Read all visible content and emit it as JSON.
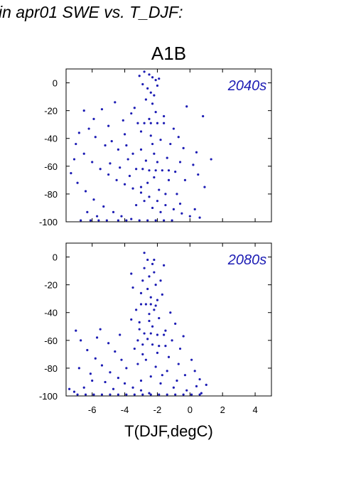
{
  "header": {
    "title": "in apr01 SWE vs. T_DJF:"
  },
  "scenario": "A1B",
  "chart_data": [
    {
      "type": "scatter",
      "annotation": "2040s",
      "xlim": [
        -7.6,
        5
      ],
      "ylim": [
        -100,
        10
      ],
      "yticks": [
        0,
        -20,
        -40,
        -60,
        -80,
        -100
      ],
      "xticks": [
        -6,
        -4,
        -2,
        0,
        2,
        4
      ],
      "color": "#1c1cb4",
      "points": [
        [
          -2.8,
          8
        ],
        [
          -2.5,
          6
        ],
        [
          -2.3,
          4
        ],
        [
          -2.1,
          2
        ],
        [
          -2.9,
          -1
        ],
        [
          -2.6,
          -4
        ],
        [
          -2.4,
          -7
        ],
        [
          -2.2,
          -9
        ],
        [
          -3.1,
          5
        ],
        [
          -1.9,
          3
        ],
        [
          -2.0,
          -2
        ],
        [
          -2.7,
          -12
        ],
        [
          -2.3,
          -15
        ],
        [
          -3.4,
          -18
        ],
        [
          -2.1,
          -21
        ],
        [
          -1.6,
          -24
        ],
        [
          -2.5,
          -26
        ],
        [
          -3.2,
          -29
        ],
        [
          -2.8,
          -29
        ],
        [
          -2.4,
          -29
        ],
        [
          -2.0,
          -29
        ],
        [
          -1.6,
          -29
        ],
        [
          -4.6,
          -14
        ],
        [
          -5.4,
          -19
        ],
        [
          -3.6,
          -22
        ],
        [
          -4.1,
          -27
        ],
        [
          -5.0,
          -31
        ],
        [
          -6.2,
          -33
        ],
        [
          -6.8,
          -36
        ],
        [
          -5.8,
          -39
        ],
        [
          -4.8,
          -42
        ],
        [
          -3.9,
          -45
        ],
        [
          -3.0,
          -48
        ],
        [
          -2.2,
          -51
        ],
        [
          -1.4,
          -54
        ],
        [
          -0.6,
          -57
        ],
        [
          0.2,
          -59
        ],
        [
          1.3,
          -55
        ],
        [
          -7.0,
          -44
        ],
        [
          -6.5,
          -51
        ],
        [
          -6.0,
          -57
        ],
        [
          -5.5,
          -62
        ],
        [
          -5.0,
          -66
        ],
        [
          -4.5,
          -70
        ],
        [
          -4.0,
          -73
        ],
        [
          -3.5,
          -76
        ],
        [
          -3.0,
          -79
        ],
        [
          -2.5,
          -82
        ],
        [
          -2.0,
          -85
        ],
        [
          -1.5,
          -88
        ],
        [
          -1.0,
          -91
        ],
        [
          -0.5,
          -94
        ],
        [
          0.0,
          -96
        ],
        [
          0.6,
          -97
        ],
        [
          -7.3,
          -65
        ],
        [
          -6.9,
          -72
        ],
        [
          -6.4,
          -78
        ],
        [
          -5.9,
          -84
        ],
        [
          -5.3,
          -89
        ],
        [
          -4.7,
          -93
        ],
        [
          -4.2,
          -96
        ],
        [
          -3.6,
          -98
        ],
        [
          -3.1,
          -99
        ],
        [
          -2.6,
          -99
        ],
        [
          -2.1,
          -99
        ],
        [
          -1.6,
          -99
        ],
        [
          -1.1,
          -99
        ],
        [
          -6.7,
          -99
        ],
        [
          -6.1,
          -99
        ],
        [
          -5.6,
          -99
        ],
        [
          -5.1,
          -99
        ],
        [
          -4.4,
          -99
        ],
        [
          -3.9,
          -99
        ],
        [
          -3.3,
          -62
        ],
        [
          -2.9,
          -62
        ],
        [
          -2.5,
          -63
        ],
        [
          -2.1,
          -63
        ],
        [
          -1.7,
          -63
        ],
        [
          -1.3,
          -63
        ],
        [
          -0.9,
          -64
        ],
        [
          -3.0,
          -35
        ],
        [
          -2.4,
          -38
        ],
        [
          -1.8,
          -41
        ],
        [
          -1.2,
          -44
        ],
        [
          -0.4,
          -47
        ],
        [
          0.4,
          -50
        ],
        [
          -2.2,
          -68
        ],
        [
          -2.6,
          -72
        ],
        [
          -3.0,
          -75
        ],
        [
          -1.9,
          -77
        ],
        [
          -1.5,
          -80
        ],
        [
          -2.8,
          -85
        ],
        [
          -3.3,
          -88
        ],
        [
          -2.3,
          -90
        ],
        [
          -1.8,
          -93
        ],
        [
          -0.8,
          -80
        ],
        [
          -0.3,
          -70
        ],
        [
          0.5,
          -66
        ],
        [
          0.9,
          -75
        ],
        [
          -6.3,
          -93
        ],
        [
          -5.7,
          -96
        ],
        [
          -7.1,
          -55
        ],
        [
          -4.9,
          -58
        ],
        [
          -4.3,
          -61
        ],
        [
          -3.8,
          -55
        ],
        [
          -3.5,
          -51
        ],
        [
          -4.4,
          -48
        ],
        [
          -5.2,
          -45
        ],
        [
          -0.2,
          -17
        ],
        [
          0.8,
          -24
        ],
        [
          -6.5,
          -20
        ],
        [
          -5.9,
          -26
        ],
        [
          -4.0,
          -37
        ],
        [
          -3.7,
          -67
        ],
        [
          -1.0,
          -33
        ],
        [
          -0.7,
          -39
        ],
        [
          -2.7,
          -56
        ],
        [
          -2.3,
          -44
        ],
        [
          -2.0,
          -57
        ],
        [
          -1.3,
          -70
        ],
        [
          -0.6,
          -87
        ],
        [
          0.3,
          -91
        ]
      ]
    },
    {
      "type": "scatter",
      "annotation": "2080s",
      "xlim": [
        -7.6,
        5
      ],
      "ylim": [
        -100,
        10
      ],
      "yticks": [
        0,
        -20,
        -40,
        -60,
        -80,
        -100
      ],
      "xticks": [
        -6,
        -4,
        -2,
        0,
        2,
        4
      ],
      "color": "#1c1cb4",
      "points": [
        [
          -2.6,
          -2
        ],
        [
          -2.3,
          -5
        ],
        [
          -2.8,
          -8
        ],
        [
          -2.2,
          -11
        ],
        [
          -2.5,
          -14
        ],
        [
          -2.9,
          -17
        ],
        [
          -2.1,
          -20
        ],
        [
          -2.6,
          -23
        ],
        [
          -3.0,
          -26
        ],
        [
          -2.4,
          -29
        ],
        [
          -2.0,
          -31
        ],
        [
          -3.0,
          -34
        ],
        [
          -2.7,
          -34
        ],
        [
          -2.4,
          -34
        ],
        [
          -2.1,
          -35
        ],
        [
          -3.5,
          -22
        ],
        [
          -1.7,
          -27
        ],
        [
          -3.3,
          -38
        ],
        [
          -2.5,
          -41
        ],
        [
          -1.9,
          -44
        ],
        [
          -3.1,
          -47
        ],
        [
          -2.3,
          -50
        ],
        [
          -1.5,
          -53
        ],
        [
          -2.8,
          -55
        ],
        [
          -2.4,
          -55
        ],
        [
          -2.0,
          -56
        ],
        [
          -1.6,
          -56
        ],
        [
          -3.6,
          -45
        ],
        [
          -1.2,
          -40
        ],
        [
          -2.6,
          -59
        ],
        [
          -2.9,
          -63
        ],
        [
          -2.3,
          -63
        ],
        [
          -1.9,
          -64
        ],
        [
          -1.5,
          -64
        ],
        [
          -3.4,
          -66
        ],
        [
          -2.0,
          -69
        ],
        [
          -1.3,
          -72
        ],
        [
          -2.7,
          -74
        ],
        [
          -3.2,
          -77
        ],
        [
          -2.1,
          -79
        ],
        [
          -1.4,
          -82
        ],
        [
          -0.7,
          -77
        ],
        [
          0.1,
          -74
        ],
        [
          -0.3,
          -85
        ],
        [
          0.6,
          -88
        ],
        [
          -2.4,
          -86
        ],
        [
          -3.0,
          -89
        ],
        [
          -1.8,
          -91
        ],
        [
          -1.0,
          -94
        ],
        [
          -0.2,
          -96
        ],
        [
          0.7,
          -98
        ],
        [
          -7.0,
          -53
        ],
        [
          -6.7,
          -60
        ],
        [
          -6.3,
          -67
        ],
        [
          -5.8,
          -73
        ],
        [
          -5.4,
          -78
        ],
        [
          -4.9,
          -83
        ],
        [
          -4.4,
          -87
        ],
        [
          -4.0,
          -91
        ],
        [
          -3.5,
          -94
        ],
        [
          -3.0,
          -96
        ],
        [
          -2.5,
          -98
        ],
        [
          -5.5,
          -52
        ],
        [
          -5.0,
          -62
        ],
        [
          -4.6,
          -68
        ],
        [
          -4.2,
          -74
        ],
        [
          -3.9,
          -80
        ],
        [
          -6.0,
          -89
        ],
        [
          -6.5,
          -94
        ],
        [
          -7.1,
          -97
        ],
        [
          -6.9,
          -99
        ],
        [
          -6.4,
          -99
        ],
        [
          -5.9,
          -99
        ],
        [
          -5.4,
          -99
        ],
        [
          -4.9,
          -99
        ],
        [
          -4.4,
          -99
        ],
        [
          -3.9,
          -99
        ],
        [
          -3.4,
          -99
        ],
        [
          -2.9,
          -99
        ],
        [
          -2.4,
          -99
        ],
        [
          -1.9,
          -99
        ],
        [
          -1.4,
          -99
        ],
        [
          -0.9,
          -99
        ],
        [
          -0.4,
          -99
        ],
        [
          0.1,
          -99
        ],
        [
          0.6,
          -99
        ],
        [
          -7.4,
          -95
        ],
        [
          -6.1,
          -84
        ],
        [
          -5.2,
          -90
        ],
        [
          -4.7,
          -95
        ],
        [
          -3.2,
          -60
        ],
        [
          -1.1,
          -60
        ],
        [
          -0.6,
          -66
        ],
        [
          0.3,
          -82
        ],
        [
          1.0,
          -92
        ],
        [
          -2.2,
          -2
        ],
        [
          -2.8,
          3
        ],
        [
          -1.6,
          -6
        ],
        [
          -3.6,
          -12
        ],
        [
          -1.8,
          -17
        ],
        [
          -0.9,
          -48
        ],
        [
          -0.4,
          -57
        ],
        [
          -5.7,
          -58
        ],
        [
          -4.3,
          -56
        ],
        [
          -6.8,
          -80
        ],
        [
          -2.5,
          -46
        ],
        [
          -2.2,
          -38
        ],
        [
          -3.1,
          -52
        ],
        [
          -1.7,
          -85
        ],
        [
          -2.9,
          -70
        ],
        [
          0.4,
          -93
        ],
        [
          -0.8,
          -89
        ]
      ]
    }
  ],
  "xlabel": "T(DJF,degC)"
}
